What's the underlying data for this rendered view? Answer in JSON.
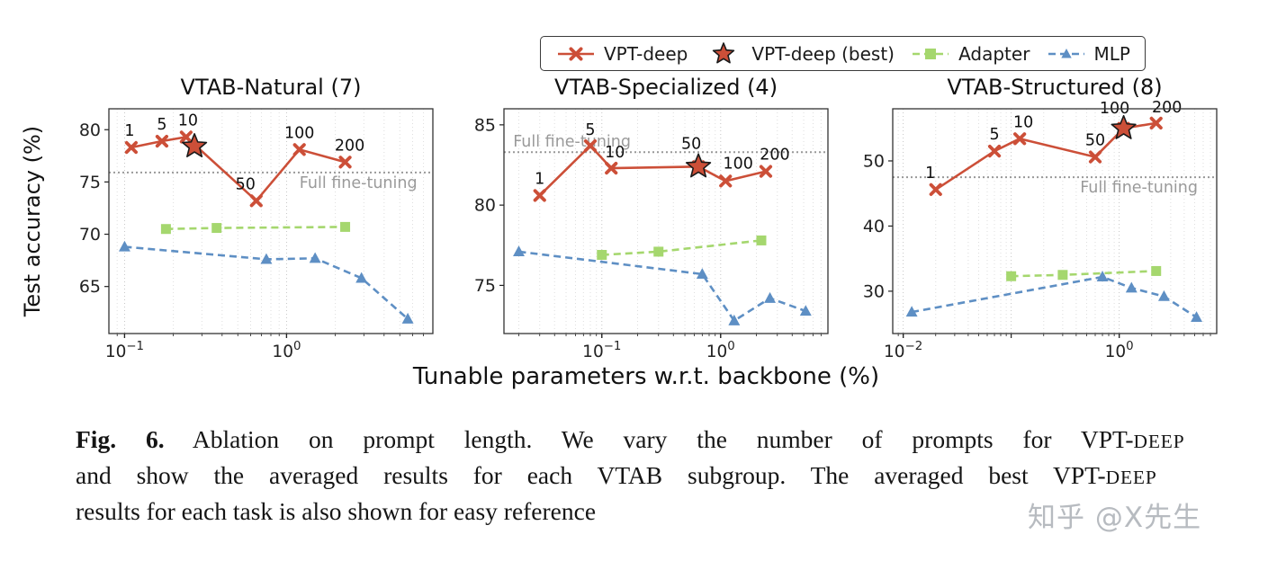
{
  "legend": {
    "items": [
      {
        "label": "VPT-deep",
        "marker": "x",
        "line": "solid",
        "color": "#cc4f38"
      },
      {
        "label": "VPT-deep (best)",
        "marker": "star",
        "line": "none",
        "color": "#cc4f38"
      },
      {
        "label": "Adapter",
        "marker": "square",
        "line": "dashed",
        "color": "#a5d76e"
      },
      {
        "label": "MLP",
        "marker": "triangle",
        "line": "dashed",
        "color": "#5e8fc4"
      }
    ]
  },
  "axes": {
    "ylabel": "Test accuracy (%)",
    "xlabel": "Tunable parameters w.r.t. backbone (%)"
  },
  "colors": {
    "vpt_deep": "#cc4f38",
    "adapter": "#a5d76e",
    "mlp": "#5e8fc4",
    "full_fine_tuning": "#9a9a9a"
  },
  "chart_data": [
    {
      "type": "line",
      "title": "VTAB-Natural (7)",
      "xscale": "log",
      "xlim": [
        0.08,
        8
      ],
      "ylim": [
        60.5,
        82
      ],
      "yticks": [
        65,
        70,
        75,
        80
      ],
      "xticks": [
        0.1,
        1
      ],
      "full_fine_tuning": {
        "value": 75.9,
        "label": "Full fine-tuning",
        "label_xfrac": 0.77,
        "label_dy": 17
      },
      "best": {
        "x": 0.27,
        "y": 78.4,
        "color": "#cc4f38"
      },
      "series": [
        {
          "name": "VPT-deep",
          "color": "#cc4f38",
          "dash": "solid",
          "marker": "x",
          "x": [
            0.11,
            0.17,
            0.24,
            0.65,
            1.2,
            2.3
          ],
          "y": [
            78.3,
            78.9,
            79.3,
            73.2,
            78.1,
            76.9
          ],
          "point_labels": [
            "1",
            "5",
            "10",
            "50",
            "100",
            "200"
          ],
          "label_offsets": [
            [
              -2,
              -13
            ],
            [
              0,
              -13
            ],
            [
              2,
              -13
            ],
            [
              -12,
              -13
            ],
            [
              0,
              -13
            ],
            [
              5,
              -13
            ]
          ]
        },
        {
          "name": "Adapter",
          "color": "#a5d76e",
          "dash": "dashed",
          "marker": "square",
          "x": [
            0.18,
            0.37,
            2.3
          ],
          "y": [
            70.5,
            70.6,
            70.7
          ]
        },
        {
          "name": "MLP",
          "color": "#5e8fc4",
          "dash": "dashed",
          "marker": "triangle",
          "x": [
            0.1,
            0.75,
            1.5,
            2.9,
            5.6
          ],
          "y": [
            68.8,
            67.6,
            67.7,
            65.8,
            61.9
          ]
        }
      ]
    },
    {
      "type": "line",
      "title": "VTAB-Specialized (4)",
      "xscale": "log",
      "xlim": [
        0.015,
        8
      ],
      "ylim": [
        72,
        86
      ],
      "yticks": [
        75,
        80,
        85
      ],
      "xticks": [
        0.1,
        1
      ],
      "full_fine_tuning": {
        "value": 83.3,
        "label": "Full fine-tuning",
        "label_xfrac": 0.21,
        "label_dy": -6
      },
      "best": {
        "x": 0.65,
        "y": 82.4,
        "color": "#cc4f38"
      },
      "series": [
        {
          "name": "VPT-deep",
          "color": "#cc4f38",
          "dash": "solid",
          "marker": "x",
          "x": [
            0.03,
            0.08,
            0.12,
            0.65,
            1.1,
            2.4
          ],
          "y": [
            80.6,
            83.7,
            82.3,
            82.4,
            81.5,
            82.1
          ],
          "point_labels": [
            "1",
            "5",
            "10",
            "50",
            "100",
            "200"
          ],
          "label_offsets": [
            [
              0,
              -13
            ],
            [
              0,
              -12
            ],
            [
              4,
              -12
            ],
            [
              -8,
              -20
            ],
            [
              14,
              -14
            ],
            [
              10,
              -13
            ]
          ]
        },
        {
          "name": "Adapter",
          "color": "#a5d76e",
          "dash": "dashed",
          "marker": "square",
          "x": [
            0.1,
            0.3,
            2.2
          ],
          "y": [
            76.9,
            77.1,
            77.8
          ]
        },
        {
          "name": "MLP",
          "color": "#5e8fc4",
          "dash": "dashed",
          "marker": "triangle",
          "x": [
            0.02,
            0.7,
            1.3,
            2.6,
            5.2
          ],
          "y": [
            77.1,
            75.7,
            72.8,
            74.2,
            73.4
          ]
        }
      ]
    },
    {
      "type": "line",
      "title": "VTAB-Structured (8)",
      "xscale": "log",
      "xlim": [
        0.008,
        8
      ],
      "ylim": [
        23.5,
        58
      ],
      "yticks": [
        30,
        40,
        50
      ],
      "xticks": [
        0.01,
        1
      ],
      "full_fine_tuning": {
        "value": 47.5,
        "label": "Full fine-tuning",
        "label_xfrac": 0.76,
        "label_dy": 17
      },
      "best": {
        "x": 1.1,
        "y": 55.0,
        "color": "#cc4f38"
      },
      "series": [
        {
          "name": "VPT-deep",
          "color": "#cc4f38",
          "dash": "solid",
          "marker": "x",
          "x": [
            0.02,
            0.07,
            0.12,
            0.6,
            1.1,
            2.2
          ],
          "y": [
            45.6,
            51.5,
            53.4,
            50.6,
            55.0,
            55.8
          ],
          "point_labels": [
            "1",
            "5",
            "10",
            "50",
            "100",
            "200"
          ],
          "label_offsets": [
            [
              -6,
              -13
            ],
            [
              0,
              -13
            ],
            [
              4,
              -13
            ],
            [
              0,
              -13
            ],
            [
              -10,
              -17
            ],
            [
              12,
              -12
            ]
          ]
        },
        {
          "name": "Adapter",
          "color": "#a5d76e",
          "dash": "dashed",
          "marker": "square",
          "x": [
            0.1,
            0.3,
            2.2
          ],
          "y": [
            32.3,
            32.5,
            33.1
          ]
        },
        {
          "name": "MLP",
          "color": "#5e8fc4",
          "dash": "dashed",
          "marker": "triangle",
          "x": [
            0.012,
            0.7,
            1.3,
            2.6,
            5.2
          ],
          "y": [
            26.8,
            32.2,
            30.5,
            29.2,
            26.0
          ]
        }
      ]
    }
  ],
  "caption": {
    "fig_label": "Fig. 6.",
    "line1_text": " Ablation on prompt length. We vary the number of prompts for VPT-",
    "line1_smallcaps": "deep",
    "line2_text": "and show the averaged results for each VTAB subgroup. The averaged best VPT-",
    "line2_smallcaps": "deep",
    "line3_text": "results for each task is also shown for easy reference"
  },
  "watermark": "知乎 @X先生"
}
